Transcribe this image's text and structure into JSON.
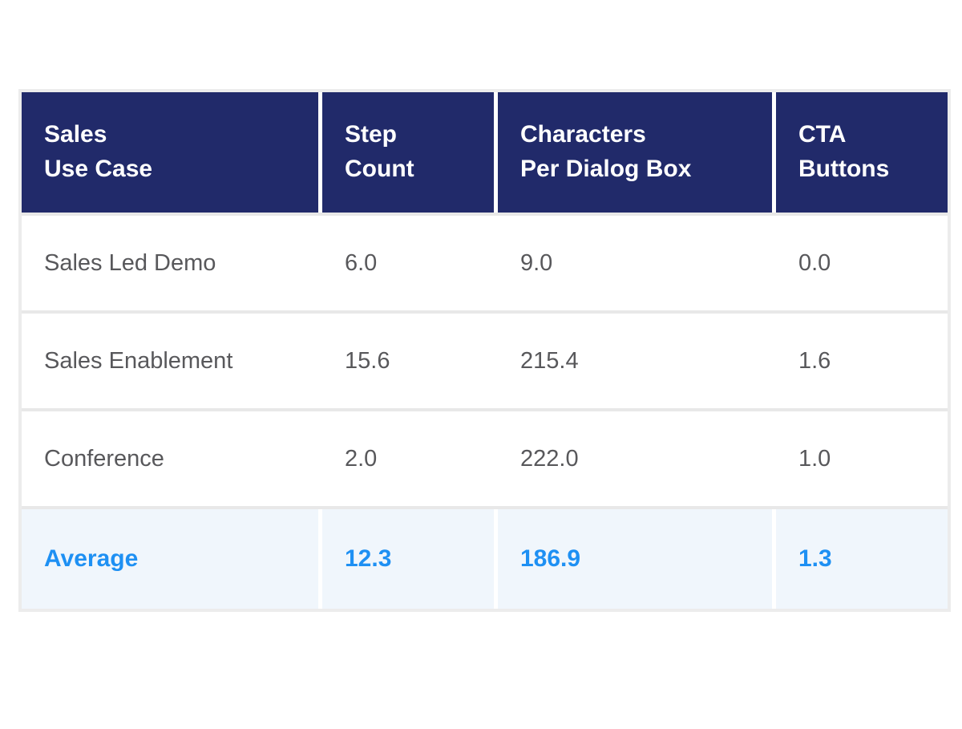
{
  "table": {
    "header": [
      {
        "label": "Sales\nUse Case"
      },
      {
        "label": "Step\nCount"
      },
      {
        "label": "Characters\nPer Dialog Box"
      },
      {
        "label": "CTA\nButtons"
      }
    ],
    "rows": [
      {
        "use_case": "Sales Led Demo",
        "step_count": "6.0",
        "characters_per_dialog_box": "9.0",
        "cta_buttons": "0.0"
      },
      {
        "use_case": "Sales Enablement",
        "step_count": "15.6",
        "characters_per_dialog_box": "215.4",
        "cta_buttons": "1.6"
      },
      {
        "use_case": "Conference",
        "step_count": "2.0",
        "characters_per_dialog_box": "222.0",
        "cta_buttons": "1.0"
      }
    ],
    "summary_row": {
      "label": "Average",
      "step_count": "12.3",
      "characters_per_dialog_box": "186.9",
      "cta_buttons": "1.3"
    }
  },
  "colors": {
    "header_bg": "#212a6a",
    "header_text": "#ffffff",
    "body_text": "#58585b",
    "summary_text": "#1e90f3",
    "summary_bg": "#f0f6fc",
    "separator": "#e8e8e8",
    "outer_border": "#ececec"
  },
  "chart_data": {
    "type": "table",
    "title": "",
    "columns": [
      "Sales Use Case",
      "Step Count",
      "Characters Per Dialog Box",
      "CTA Buttons"
    ],
    "rows": [
      [
        "Sales Led Demo",
        6.0,
        9.0,
        0.0
      ],
      [
        "Sales Enablement",
        15.6,
        215.4,
        1.6
      ],
      [
        "Conference",
        2.0,
        222.0,
        1.0
      ],
      [
        "Average",
        12.3,
        186.9,
        1.3
      ]
    ],
    "layout_hints": {
      "header_style": "dark-navy, white bold text",
      "summary_row_style": "light-blue background, blue bold text",
      "grid": "white column gaps, gray row separators"
    }
  }
}
